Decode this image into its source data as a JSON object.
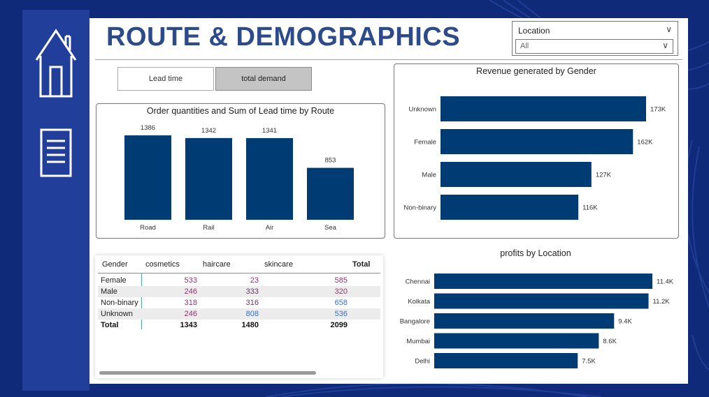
{
  "header": {
    "title": "ROUTE & DEMOGRAPHICS"
  },
  "nav": {
    "home_icon": "home-icon",
    "report_icon": "document-icon"
  },
  "filter": {
    "label": "Location",
    "value": "All"
  },
  "buttons": {
    "lead_time": "Lead time",
    "total_demand": "total demand"
  },
  "colors": {
    "bar": "#003b73",
    "sidebar": "#213f9a",
    "background": "#0f2a78",
    "title": "#2d4a8a"
  },
  "chart_data": [
    {
      "type": "bar",
      "title": "Order quantities and Sum of Lead time by Route",
      "categories": [
        "Road",
        "Rail",
        "Air",
        "Sea"
      ],
      "values": [
        1386,
        1342,
        1341,
        853
      ],
      "data_labels": [
        "1386",
        "1342",
        "1341",
        "853"
      ],
      "ylim": [
        0,
        1386
      ]
    },
    {
      "type": "bar",
      "orientation": "horizontal",
      "title": "Revenue generated by Gender",
      "categories": [
        "Unknown",
        "Female",
        "Male",
        "Non-binary"
      ],
      "values": [
        173,
        162,
        127,
        116
      ],
      "data_labels": [
        "173K",
        "162K",
        "127K",
        "116K"
      ],
      "xlim": [
        0,
        173
      ]
    },
    {
      "type": "bar",
      "orientation": "horizontal",
      "title": "profits by Location",
      "categories": [
        "Chennai",
        "Kolkata",
        "Bangalore",
        "Mumbai",
        "Delhi"
      ],
      "values": [
        11.4,
        11.2,
        9.4,
        8.6,
        7.5
      ],
      "data_labels": [
        "11.4K",
        "11.2K",
        "9.4K",
        "8.6K",
        "7.5K"
      ],
      "xlim": [
        0,
        11.4
      ]
    }
  ],
  "matrix": {
    "headers": {
      "gender": "Gender",
      "cosmetics": "cosmetics",
      "haircare": "haircare",
      "skincare": "skincare",
      "total": "Total"
    },
    "rows": [
      {
        "label": "Female",
        "cosmetics": "533",
        "haircare": "23",
        "skincare": "585"
      },
      {
        "label": "Male",
        "cosmetics": "246",
        "haircare": "333",
        "skincare": "320"
      },
      {
        "label": "Non-binary",
        "cosmetics": "318",
        "haircare": "316",
        "skincare": "658"
      },
      {
        "label": "Unknown",
        "cosmetics": "246",
        "haircare": "808",
        "skincare": "536"
      }
    ],
    "total_row": {
      "label": "Total",
      "cosmetics": "1343",
      "haircare": "1480",
      "skincare": "2099"
    }
  }
}
